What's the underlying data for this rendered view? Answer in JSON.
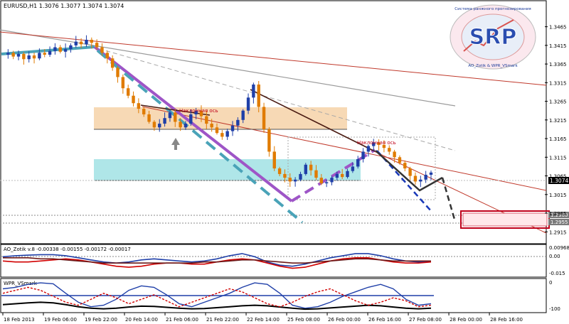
{
  "title": "EURUSD,H1  1.3076 1.3077 1.3074 1.3074",
  "colors": {
    "bull": "#1f3fa8",
    "bear": "#e07b00",
    "grid": "#c8c8c8",
    "axis": "#000000",
    "ask_label_bg": "#000000",
    "orange_zone": "#f6d2a8",
    "cyan_zone": "#a6e3e6",
    "purple": "#9e55c7",
    "teal_dash": "#4aa3b8",
    "red_box": "#c0001a"
  },
  "logo": {
    "text": "SRP",
    "ring_top": "Система ранжного прогнозирования",
    "ring_bottom": "AO_Zotik & WPR_VSmark"
  },
  "annotations": {
    "axis_label_1": "Наклонная ось",
    "axis_label_2": "Наклонная ось",
    "box_price_1": "1.2960",
    "box_price_2": "1.2955"
  },
  "current_price": "1.3074",
  "chart_data": [
    {
      "type": "candlestick",
      "title": "EURUSD,H1  1.3076 1.3077 1.3074 1.3074",
      "ylim": [
        1.2885,
        1.351
      ],
      "y_ticks": [
        "1.3465",
        "1.3415",
        "1.3365",
        "1.3315",
        "1.3265",
        "1.3215",
        "1.3165",
        "1.3115",
        "1.3065",
        "1.3015",
        "1.2965",
        "1.2915"
      ],
      "x_ticks": [
        "18 Feb 2013",
        "19 Feb 06:00",
        "19 Feb 22:00",
        "20 Feb 14:00",
        "21 Feb 06:00",
        "21 Feb 22:00",
        "22 Feb 14:00",
        "25 Feb 08:00",
        "26 Feb 00:00",
        "26 Feb 16:00",
        "27 Feb 08:00",
        "28 Feb 00:00",
        "28 Feb 16:00"
      ],
      "close_path": [
        1.339,
        1.3395,
        1.3385,
        1.3392,
        1.3378,
        1.3388,
        1.338,
        1.3395,
        1.339,
        1.34,
        1.341,
        1.3398,
        1.3405,
        1.3415,
        1.3425,
        1.3418,
        1.343,
        1.3422,
        1.341,
        1.3395,
        1.338,
        1.3355,
        1.333,
        1.33,
        1.328,
        1.326,
        1.3245,
        1.323,
        1.321,
        1.3195,
        1.3205,
        1.322,
        1.3235,
        1.321,
        1.3195,
        1.3205,
        1.323,
        1.324,
        1.3225,
        1.3205,
        1.3195,
        1.318,
        1.317,
        1.3185,
        1.32,
        1.3215,
        1.324,
        1.3275,
        1.331,
        1.325,
        1.319,
        1.313,
        1.3085,
        1.307,
        1.306,
        1.305,
        1.3055,
        1.307,
        1.3095,
        1.308,
        1.306,
        1.3045,
        1.3048,
        1.306,
        1.307,
        1.3062,
        1.3078,
        1.309,
        1.311,
        1.313,
        1.3145,
        1.3155,
        1.3148,
        1.314,
        1.313,
        1.3115,
        1.31,
        1.3085,
        1.3065,
        1.305,
        1.3055,
        1.3068,
        1.3074
      ]
    },
    {
      "type": "line",
      "title": "AO_Zotik v.8 -0.00338 -0.00155 -0.00172 -0.00017",
      "ylim": [
        -0.015,
        0.012
      ],
      "y_ticks": [
        "0.00968",
        "0.00",
        "-0.015"
      ],
      "series": [
        {
          "color": "#1f3fa8",
          "values": [
            0.003,
            0.004,
            0.0045,
            0.005,
            0.005,
            0.004,
            0.002,
            0.0,
            -0.002,
            -0.003,
            -0.002,
            0.0,
            0.001,
            0.0,
            -0.001,
            -0.002,
            -0.001,
            0.001,
            0.004,
            0.006,
            0.003,
            -0.002,
            -0.005,
            -0.006,
            -0.004,
            -0.001,
            0.002,
            0.004,
            0.006,
            0.006,
            0.004,
            0.001,
            -0.001,
            -0.002,
            -0.002
          ]
        },
        {
          "color": "#d10000",
          "values": [
            -0.001,
            -0.002,
            -0.002,
            -0.001,
            0.0,
            0.001,
            0.0,
            -0.002,
            -0.004,
            -0.006,
            -0.007,
            -0.006,
            -0.004,
            -0.003,
            -0.003,
            -0.004,
            -0.004,
            -0.002,
            0.0,
            0.001,
            0.0,
            -0.003,
            -0.006,
            -0.008,
            -0.007,
            -0.004,
            -0.001,
            0.001,
            0.002,
            0.002,
            0.0,
            -0.002,
            -0.003,
            -0.003,
            -0.002
          ]
        },
        {
          "color": "#6b1a1a",
          "values": [
            0.002,
            0.002,
            0.002,
            0.001,
            0.001,
            0.0,
            -0.001,
            -0.002,
            -0.003,
            -0.003,
            -0.003,
            -0.003,
            -0.003,
            -0.003,
            -0.003,
            -0.003,
            -0.002,
            -0.002,
            -0.001,
            0.0,
            0.0,
            -0.001,
            -0.002,
            -0.003,
            -0.003,
            -0.002,
            -0.001,
            0.0,
            0.001,
            0.001,
            0.0,
            -0.001,
            -0.001,
            -0.001,
            -0.001
          ]
        }
      ]
    },
    {
      "type": "line",
      "title": "WPR_VSmark",
      "ylim": [
        -100,
        0
      ],
      "y_ticks": [
        "0",
        "-100"
      ],
      "series": [
        {
          "color": "#1f3fa8",
          "values": [
            -25,
            -20,
            -10,
            -5,
            -8,
            -40,
            -70,
            -85,
            -80,
            -60,
            -30,
            -15,
            -20,
            -45,
            -75,
            -85,
            -70,
            -55,
            -40,
            -20,
            -5,
            -10,
            -40,
            -80,
            -90,
            -85,
            -70,
            -50,
            -35,
            -20,
            -10,
            -25,
            -60,
            -80,
            -75
          ]
        },
        {
          "color": "#000000",
          "values": [
            -78,
            -75,
            -72,
            -70,
            -72,
            -78,
            -85,
            -90,
            -92,
            -90,
            -86,
            -83,
            -84,
            -87,
            -90,
            -92,
            -91,
            -88,
            -85,
            -82,
            -80,
            -82,
            -86,
            -90,
            -93,
            -92,
            -89,
            -86,
            -83,
            -80,
            -82,
            -86,
            -90,
            -92,
            -90
          ]
        },
        {
          "color": "#d10000",
          "values": [
            -40,
            -30,
            -20,
            -30,
            -50,
            -70,
            -80,
            -60,
            -40,
            -55,
            -75,
            -60,
            -45,
            -65,
            -85,
            -70,
            -55,
            -40,
            -25,
            -35,
            -55,
            -75,
            -85,
            -70,
            -50,
            -35,
            -25,
            -45,
            -65,
            -80,
            -70,
            -55,
            -65,
            -85,
            -80
          ]
        }
      ]
    }
  ]
}
